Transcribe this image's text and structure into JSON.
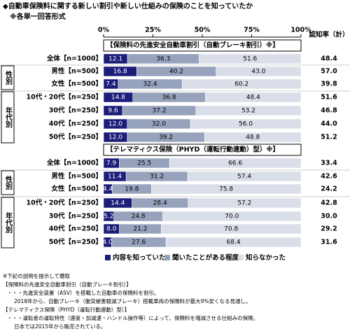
{
  "chart_data": {
    "type": "bar",
    "orientation": "horizontal",
    "title": "◆自動車保険料に関する新しい割引や新しい仕組みの保険のことを知っていたか",
    "subtitle": "※各単一回答形式",
    "xlim": [
      0,
      100
    ],
    "xticks": [
      {
        "value": 0,
        "label": "0%"
      },
      {
        "value": 25,
        "label": "25%"
      },
      {
        "value": 50,
        "label": "50%"
      },
      {
        "value": 75,
        "label": "75%"
      },
      {
        "value": 100,
        "label": "100%"
      }
    ],
    "recognition_title": "認知率（計）",
    "series": [
      {
        "name": "内容を知っていた",
        "color": "#1c1c7a"
      },
      {
        "name": "聞いたことがある程度",
        "color": "#97a3bd"
      },
      {
        "name": "知らなかった",
        "color": "#dadee8"
      }
    ],
    "sections": [
      {
        "label": "【保険料の先進安全自動車割引（自動ブレーキ割引）※】",
        "categories": [
          "全体【n=1000】",
          "男性【n=500】",
          "女性【n=500】",
          "10代・20代【n=250】",
          "30代【n=250】",
          "40代【n=250】",
          "50代【n=250】"
        ],
        "groups": [
          {
            "label": "性別",
            "size": 2
          },
          {
            "label": "年代別",
            "size": 4
          }
        ],
        "values": [
          [
            12.1,
            16.8,
            7.4,
            14.8,
            9.6,
            12,
            12
          ],
          [
            36.3,
            40.2,
            32.4,
            36.8,
            37.2,
            32,
            39.2
          ],
          [
            51.6,
            43,
            60.2,
            48.4,
            53.2,
            56,
            48.8
          ]
        ],
        "value_labels": [
          [
            "12.1",
            "16.8",
            "7.4",
            "14.8",
            "9.6",
            "12.0",
            "12.0"
          ],
          [
            "36.3",
            "40.2",
            "32.4",
            "36.8",
            "37.2",
            "32.0",
            "39.2"
          ],
          [
            "51.6",
            "43.0",
            "60.2",
            "48.4",
            "53.2",
            "56.0",
            "48.8"
          ]
        ],
        "recognition": [
          48.4,
          57,
          39.8,
          51.6,
          46.8,
          44,
          51.2
        ],
        "recognition_labels": [
          "48.4",
          "57.0",
          "39.8",
          "51.6",
          "46.8",
          "44.0",
          "51.2"
        ]
      },
      {
        "label": "【テレマティクス保険（PHYD（運転行動連動）型）※】",
        "categories": [
          "全体【n=1000】",
          "男性【n=500】",
          "女性【n=500】",
          "10代・20代【n=250】",
          "30代【n=250】",
          "40代【n=250】",
          "50代【n=250】"
        ],
        "groups": [
          {
            "label": "性別",
            "size": 2
          },
          {
            "label": "年代別",
            "size": 4
          }
        ],
        "values": [
          [
            7.9,
            11.4,
            4.4,
            14.4,
            5.2,
            8,
            4
          ],
          [
            25.5,
            31.2,
            19.8,
            28.4,
            24.8,
            21.2,
            27.6
          ],
          [
            66.6,
            57.4,
            75.8,
            57.2,
            70,
            70.8,
            68.4
          ]
        ],
        "value_labels": [
          [
            "7.9",
            "11.4",
            "4.4",
            "14.4",
            "5.2",
            "8.0",
            "4.0"
          ],
          [
            "25.5",
            "31.2",
            "19.8",
            "28.4",
            "24.8",
            "21.2",
            "27.6"
          ],
          [
            "66.6",
            "57.4",
            "75.8",
            "57.2",
            "70.0",
            "70.8",
            "68.4"
          ]
        ],
        "recognition": [
          33.4,
          42.6,
          24.2,
          42.8,
          30,
          29.2,
          31.6
        ],
        "recognition_labels": [
          "33.4",
          "42.6",
          "24.2",
          "42.8",
          "30.0",
          "29.2",
          "31.6"
        ]
      }
    ],
    "notes": [
      "※下記の説明を提示して聴取",
      "【保険料の先進安全自動車割引（自動ブレーキ割引）】",
      "・・・先進安全装置（ASV）を搭載した自動車の保険料を割引。",
      "2018年から、自動ブレーキ（衝突被害軽減ブレーキ）搭載車両の保険料が最大9%安くなる見通し。",
      "【テレマティクス保険（PHYD（運転行動連動）型）】",
      "・・・運転者の運転特性（速度・加減速・ハンドル操作等）によって、保険料を増減させる仕組みの保険。",
      "日本では2015年から販売されている。"
    ]
  }
}
